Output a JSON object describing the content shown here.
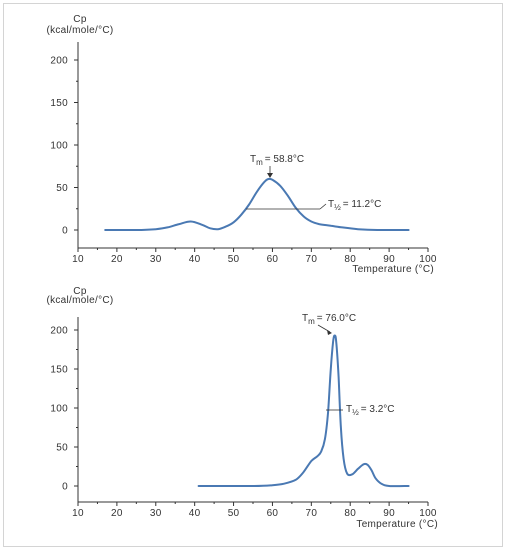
{
  "chart_data": [
    {
      "type": "line",
      "ylabel_line1": "Cp",
      "ylabel_line2": "(kcal/mole/°C)",
      "xlabel": "Temperature (°C)",
      "xlim": [
        10,
        100
      ],
      "ylim": [
        0,
        200
      ],
      "xticks": [
        10,
        20,
        30,
        40,
        50,
        60,
        70,
        80,
        90,
        100
      ],
      "yticks": [
        0,
        50,
        100,
        150,
        200
      ],
      "grid": false,
      "series": [
        {
          "color": "#4a79b3",
          "points": [
            [
              17,
              0
            ],
            [
              25,
              0
            ],
            [
              30,
              1
            ],
            [
              33,
              3
            ],
            [
              36,
              7
            ],
            [
              39,
              10
            ],
            [
              42,
              6
            ],
            [
              44,
              2
            ],
            [
              46,
              1
            ],
            [
              48,
              4
            ],
            [
              50,
              9
            ],
            [
              52,
              18
            ],
            [
              54,
              30
            ],
            [
              56,
              45
            ],
            [
              58,
              57
            ],
            [
              59,
              60
            ],
            [
              60,
              59
            ],
            [
              62,
              52
            ],
            [
              64,
              40
            ],
            [
              66,
              26
            ],
            [
              68,
              16
            ],
            [
              70,
              10
            ],
            [
              72,
              7
            ],
            [
              75,
              5
            ],
            [
              78,
              3
            ],
            [
              82,
              1
            ],
            [
              87,
              0
            ],
            [
              95,
              0
            ]
          ]
        }
      ],
      "annotations": {
        "tm_label": "T",
        "tm_sub": "m",
        "tm_value": "= 58.8°C",
        "th_label": "T",
        "th_sub": "½",
        "th_value": "= 11.2°C"
      }
    },
    {
      "type": "line",
      "ylabel_line1": "Cp",
      "ylabel_line2": "(kcal/mole/°C)",
      "xlabel": "Temperature (°C)",
      "xlim": [
        10,
        100
      ],
      "ylim": [
        0,
        200
      ],
      "xticks": [
        10,
        20,
        30,
        40,
        50,
        60,
        70,
        80,
        90,
        100
      ],
      "yticks": [
        0,
        50,
        100,
        150,
        200
      ],
      "grid": false,
      "series": [
        {
          "color": "#4a79b3",
          "points": [
            [
              41,
              0
            ],
            [
              55,
              0
            ],
            [
              60,
              1
            ],
            [
              63,
              3
            ],
            [
              66,
              8
            ],
            [
              68,
              18
            ],
            [
              70,
              32
            ],
            [
              71.5,
              38
            ],
            [
              72.5,
              44
            ],
            [
              73.5,
              60
            ],
            [
              74.3,
              95
            ],
            [
              75,
              150
            ],
            [
              75.6,
              185
            ],
            [
              76,
              193
            ],
            [
              76.4,
              185
            ],
            [
              77,
              140
            ],
            [
              77.6,
              75
            ],
            [
              78.3,
              35
            ],
            [
              79.2,
              16
            ],
            [
              80.5,
              15
            ],
            [
              82,
              22
            ],
            [
              83.5,
              28
            ],
            [
              84.5,
              27
            ],
            [
              85.5,
              20
            ],
            [
              86.5,
              10
            ],
            [
              88,
              3
            ],
            [
              90,
              0
            ],
            [
              95,
              0
            ]
          ]
        }
      ],
      "annotations": {
        "tm_label": "T",
        "tm_sub": "m",
        "tm_value": "= 76.0°C",
        "th_label": "T",
        "th_sub": "½",
        "th_value": "= 3.2°C"
      }
    }
  ]
}
